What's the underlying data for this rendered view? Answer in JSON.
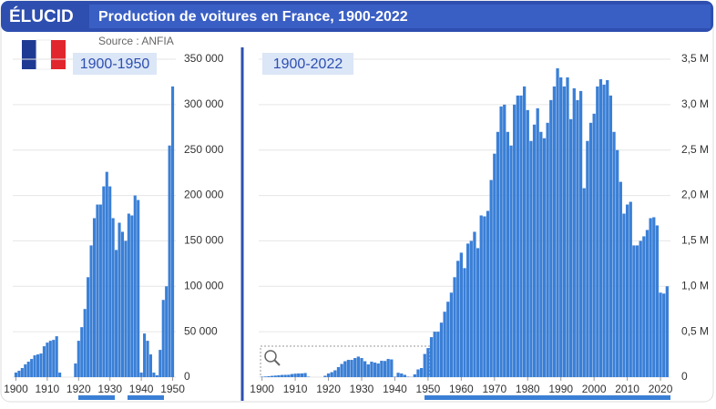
{
  "header": {
    "logo": "ÉLUCID",
    "title": "Production de voitures en France, 1900-2022",
    "source": "Source : ANFIA"
  },
  "chart_data": [
    {
      "type": "bar",
      "title": "1900-1950",
      "color": "#3a7fd6",
      "grid": true,
      "x": [
        1900,
        1901,
        1902,
        1903,
        1904,
        1905,
        1906,
        1907,
        1908,
        1909,
        1910,
        1911,
        1912,
        1913,
        1914,
        1915,
        1916,
        1917,
        1918,
        1919,
        1920,
        1921,
        1922,
        1923,
        1924,
        1925,
        1926,
        1927,
        1928,
        1929,
        1930,
        1931,
        1932,
        1933,
        1934,
        1935,
        1936,
        1937,
        1938,
        1939,
        1940,
        1941,
        1942,
        1943,
        1944,
        1945,
        1946,
        1947,
        1948,
        1949,
        1950
      ],
      "values": [
        5000,
        7000,
        10000,
        14000,
        17000,
        20000,
        24000,
        25000,
        26000,
        34000,
        38000,
        40000,
        41000,
        45000,
        5000,
        0,
        0,
        0,
        0,
        15000,
        40000,
        55000,
        75000,
        110000,
        145000,
        175000,
        190000,
        190000,
        210000,
        226000,
        210000,
        175000,
        140000,
        170000,
        160000,
        150000,
        180000,
        178000,
        200000,
        195000,
        5000,
        48000,
        40000,
        25000,
        5000,
        2000,
        30000,
        85000,
        100000,
        255000,
        320000
      ],
      "xlim": [
        1899,
        1951
      ],
      "xticks": [
        1900,
        1910,
        1920,
        1930,
        1940,
        1950
      ],
      "ylim": [
        0,
        350000
      ],
      "yticks": [
        0,
        {
          "value": 50000,
          "label": "50 000"
        },
        {
          "value": 100000,
          "label": "100 000"
        },
        {
          "value": 150000,
          "label": "150 000"
        },
        {
          "value": 200000,
          "label": "200 000"
        },
        {
          "value": 250000,
          "label": "250 000"
        },
        {
          "value": 300000,
          "label": "300 000"
        },
        {
          "value": 350000,
          "label": "350 000"
        }
      ]
    },
    {
      "type": "bar",
      "title": "1900-2022",
      "color": "#3a7fd6",
      "grid": true,
      "x": [
        1900,
        1901,
        1902,
        1903,
        1904,
        1905,
        1906,
        1907,
        1908,
        1909,
        1910,
        1911,
        1912,
        1913,
        1914,
        1915,
        1916,
        1917,
        1918,
        1919,
        1920,
        1921,
        1922,
        1923,
        1924,
        1925,
        1926,
        1927,
        1928,
        1929,
        1930,
        1931,
        1932,
        1933,
        1934,
        1935,
        1936,
        1937,
        1938,
        1939,
        1940,
        1941,
        1942,
        1943,
        1944,
        1945,
        1946,
        1947,
        1948,
        1949,
        1950,
        1951,
        1952,
        1953,
        1954,
        1955,
        1956,
        1957,
        1958,
        1959,
        1960,
        1961,
        1962,
        1963,
        1964,
        1965,
        1966,
        1967,
        1968,
        1969,
        1970,
        1971,
        1972,
        1973,
        1974,
        1975,
        1976,
        1977,
        1978,
        1979,
        1980,
        1981,
        1982,
        1983,
        1984,
        1985,
        1986,
        1987,
        1988,
        1989,
        1990,
        1991,
        1992,
        1993,
        1994,
        1995,
        1996,
        1997,
        1998,
        1999,
        2000,
        2001,
        2002,
        2003,
        2004,
        2005,
        2006,
        2007,
        2008,
        2009,
        2010,
        2011,
        2012,
        2013,
        2014,
        2015,
        2016,
        2017,
        2018,
        2019,
        2020,
        2021,
        2022
      ],
      "values": [
        5000,
        7000,
        10000,
        14000,
        17000,
        20000,
        24000,
        25000,
        26000,
        34000,
        38000,
        40000,
        41000,
        45000,
        5000,
        0,
        0,
        0,
        0,
        15000,
        40000,
        55000,
        75000,
        110000,
        145000,
        175000,
        190000,
        190000,
        210000,
        226000,
        210000,
        175000,
        140000,
        170000,
        160000,
        150000,
        180000,
        178000,
        200000,
        195000,
        5000,
        48000,
        40000,
        25000,
        5000,
        2000,
        30000,
        85000,
        100000,
        255000,
        320000,
        440000,
        500000,
        500000,
        600000,
        720000,
        830000,
        930000,
        1100000,
        1280000,
        1370000,
        1200000,
        1470000,
        1500000,
        1600000,
        1420000,
        1780000,
        1770000,
        1830000,
        2170000,
        2460000,
        2700000,
        2980000,
        3000000,
        2700000,
        2550000,
        3000000,
        3100000,
        3100000,
        3200000,
        2940000,
        2600000,
        2780000,
        2960000,
        2700000,
        2630000,
        2800000,
        3050000,
        3200000,
        3400000,
        3300000,
        3200000,
        3300000,
        2840000,
        3180000,
        3050000,
        3150000,
        2080000,
        2600000,
        2800000,
        2900000,
        3200000,
        3280000,
        3220000,
        3270000,
        3100000,
        2700000,
        2500000,
        2150000,
        1800000,
        1900000,
        1930000,
        1450000,
        1450000,
        1500000,
        1550000,
        1620000,
        1750000,
        1760000,
        1670000,
        930000,
        920000,
        1000000
      ],
      "xlim": [
        1899,
        2023
      ],
      "xticks": [
        1900,
        1910,
        1920,
        1930,
        1940,
        1950,
        1960,
        1970,
        1980,
        1990,
        2000,
        2010,
        2020
      ],
      "ylim": [
        0,
        3500000
      ],
      "yticks": [
        0,
        {
          "value": 500000,
          "label": "0,5 M"
        },
        {
          "value": 1000000,
          "label": "1,0 M"
        },
        {
          "value": 1500000,
          "label": "1,5 M"
        },
        {
          "value": 2000000,
          "label": "2,0 M"
        },
        {
          "value": 2500000,
          "label": "2,5 M"
        },
        {
          "value": 3000000,
          "label": "3,0 M"
        },
        {
          "value": 3500000,
          "label": "3,5 M"
        }
      ]
    }
  ]
}
